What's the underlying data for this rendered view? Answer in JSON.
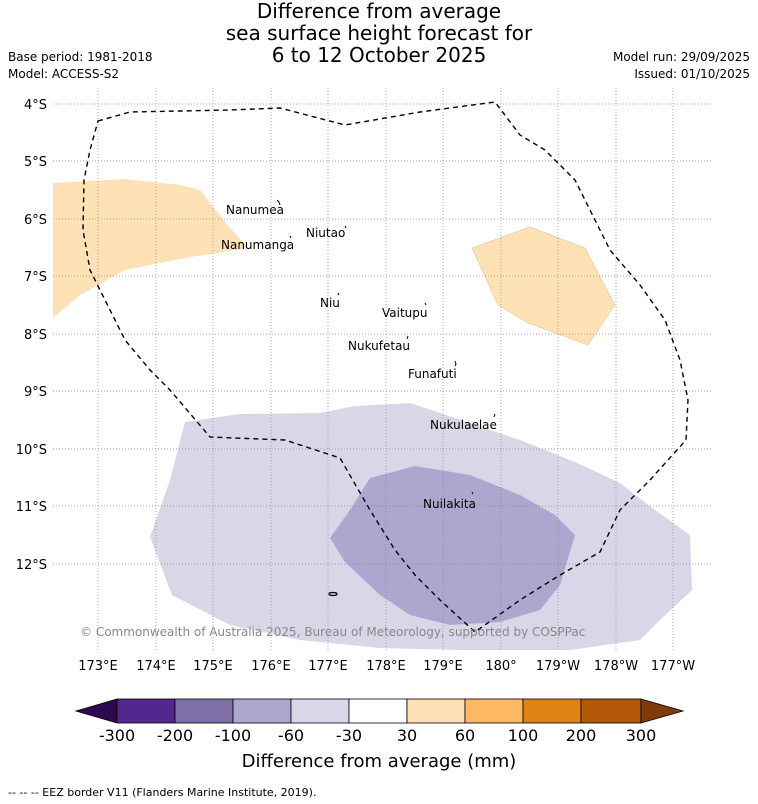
{
  "title": {
    "line1": "Difference from average",
    "line2": "sea surface height forecast for",
    "line3": "6 to 12 October 2025"
  },
  "meta": {
    "base_period": "Base period: 1981-2018",
    "model": "Model: ACCESS-S2",
    "model_run": "Model run: 29/09/2025",
    "issued": "Issued: 01/10/2025"
  },
  "map": {
    "lat_ticks": [
      "4°S",
      "5°S",
      "6°S",
      "7°S",
      "8°S",
      "9°S",
      "10°S",
      "11°S",
      "12°S"
    ],
    "lon_ticks": [
      "173°E",
      "174°E",
      "175°E",
      "176°E",
      "177°E",
      "178°E",
      "179°E",
      "180°",
      "179°W",
      "178°W",
      "177°W"
    ],
    "islands": [
      "Nanumea",
      "Nanumanga",
      "Niutao",
      "Niu",
      "Vaitupu",
      "Nukufetau",
      "Funafuti",
      "Nukulaelae",
      "Nuilakita"
    ],
    "copyright": "© Commonwealth of Australia 2025, Bureau of Meteorology, supported by COSPPac"
  },
  "colorbar": {
    "ticks": [
      "-300",
      "-200",
      "-100",
      "-60",
      "-30",
      "30",
      "60",
      "100",
      "200",
      "300"
    ],
    "colors": [
      "#2d0a4e",
      "#54278f",
      "#7f70a8",
      "#ada7d0",
      "#d7d7e8",
      "#ffffff",
      "#fee1b4",
      "#fdb863",
      "#e08214",
      "#b35806",
      "#7f3b08"
    ],
    "label": "Difference from average (mm)"
  },
  "footer": "-- -- -- EEZ border V11 (Flanders Marine Institute, 2019)."
}
